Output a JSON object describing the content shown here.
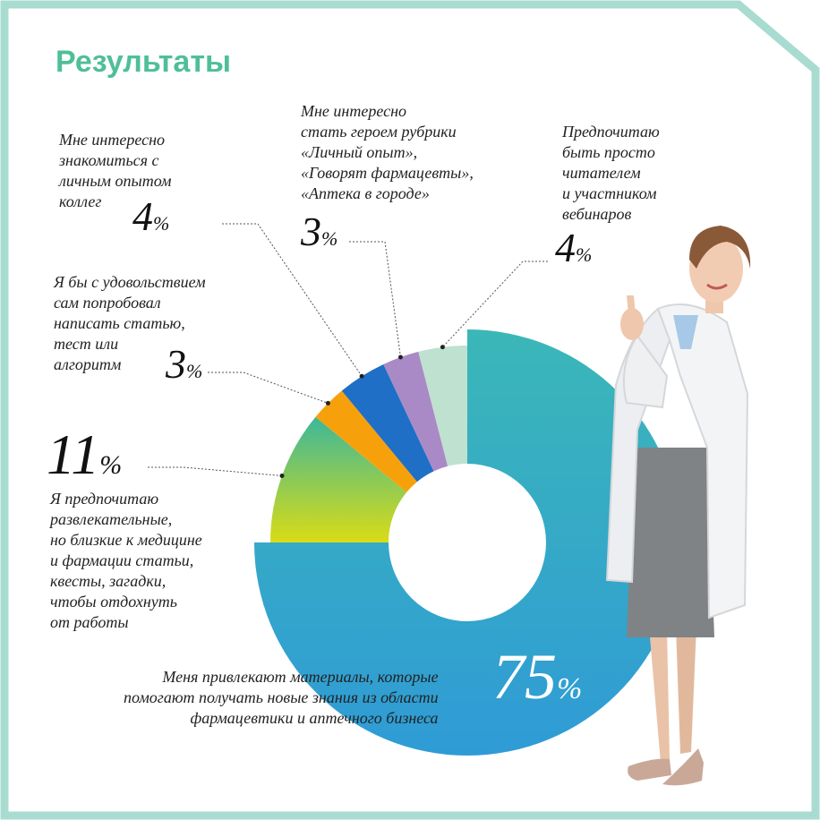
{
  "title": "Результаты",
  "colors": {
    "frame": "#a8dcd0",
    "title": "#4fbf97",
    "main_segment_top": "#3bb7b8",
    "main_segment_bottom": "#2f9bd6",
    "entertainment_top": "#3db79a",
    "entertainment_bottom": "#d9dc16",
    "orange": "#f6a10c",
    "blue": "#1f6fc6",
    "purple": "#a98ac6",
    "mint": "#bfe1cf"
  },
  "chart_data": {
    "type": "pie",
    "variant": "donut",
    "unit": "%",
    "slices": [
      {
        "value": 75,
        "label": "Меня привлекают материалы, которые\nпомогают получать новые знания из области\nфармацевтики и аптечного бизнеса"
      },
      {
        "value": 11,
        "label": "Я предпочитаю\nразвлекательные,\nно близкие к медицине\nи фармации статьи,\nквесты, загадки,\nчтобы отдохнуть\nот работы"
      },
      {
        "value": 3,
        "label": "Я бы с удовольствием\nсам попробовал\nнаписать статью,\nтест или\nалгоритм"
      },
      {
        "value": 4,
        "label": "Мне интересно\nзнакомиться с\nличным опытом\nколлег"
      },
      {
        "value": 3,
        "label": "Мне интересно\nстать героем рубрики\n«Личный опыт»,\n«Говорят фармацевты»,\n«Аптека в городе»"
      },
      {
        "value": 4,
        "label": "Предпочитаю\nбыть просто\nчитателем\nи участником\nвебинаров"
      }
    ]
  },
  "percent_sign": "%",
  "values_text": {
    "main": "75",
    "entertainment": "11",
    "write": "3",
    "experience": "4",
    "hero": "3",
    "reader": "4"
  }
}
